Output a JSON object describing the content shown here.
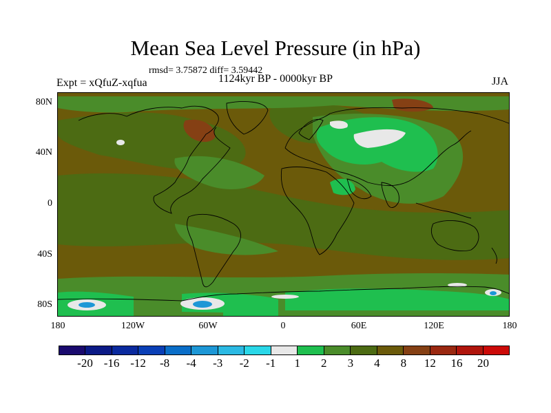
{
  "title": "Mean Sea Level Pressure (in hPa)",
  "stats": "rmsd= 3.75872 diff= 3.59442",
  "subtitle": "1124kyr BP - 0000kyr BP",
  "experiment": "Expt = xQfuZ-xqfua",
  "season": "JJA",
  "y_axis_labels": [
    "80N",
    "40N",
    "0",
    "40S",
    "80S"
  ],
  "x_axis_labels": [
    "180",
    "120W",
    "60W",
    "0",
    "60E",
    "120E",
    "180"
  ],
  "colorbar": {
    "colors": [
      "#1a0a6e",
      "#0b1a86",
      "#0a2a9e",
      "#0a3fb6",
      "#0a6ec8",
      "#1d97d6",
      "#2bb9e3",
      "#2ad7e8",
      "#e8e8e8",
      "#1fbf4f",
      "#4a8c2a",
      "#4c6b13",
      "#6b5a0a",
      "#854014",
      "#9a2810",
      "#b0150c",
      "#cc0a08"
    ],
    "labels": [
      "-20",
      "-16",
      "-12",
      "-8",
      "-4",
      "-3",
      "-2",
      "-1",
      "1",
      "2",
      "3",
      "4",
      "8",
      "12",
      "16",
      "20"
    ]
  },
  "field_colors": {
    "background": "#6b5a0a",
    "level_3": "#4a8c2a",
    "level_4": "#4c6b13",
    "level_2": "#1fbf4f",
    "level_1": "#e8e8e8",
    "level_neg": "#1d97d6",
    "level_12": "#854014"
  }
}
